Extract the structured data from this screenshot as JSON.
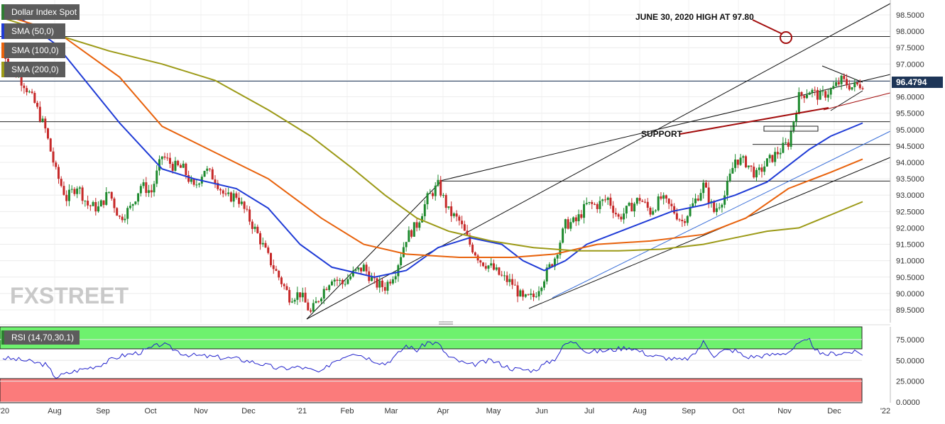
{
  "chart_data": {
    "type": "candlestick",
    "instrument": "Dollar Index Spot",
    "legend": [
      {
        "label": "Dollar Index Spot",
        "color": "#2e7d32"
      },
      {
        "label": "SMA (50,0)",
        "color": "#1f3bd6"
      },
      {
        "label": "SMA (100,0)",
        "color": "#e8620c"
      },
      {
        "label": "SMA (200,0)",
        "color": "#9c9a17"
      }
    ],
    "last_price_label": "96.4794",
    "last_price": 96.4794,
    "y_ticks": [
      "98.5000",
      "98.0000",
      "97.5000",
      "97.0000",
      "96.5000",
      "96.0000",
      "95.5000",
      "95.0000",
      "94.5000",
      "94.0000",
      "93.5000",
      "93.0000",
      "92.5000",
      "92.0000",
      "91.5000",
      "91.0000",
      "90.5000",
      "90.0000",
      "89.5000"
    ],
    "ylim": [
      89.2,
      98.85
    ],
    "x_ticks": [
      "'20",
      "Aug",
      "Sep",
      "Oct",
      "Nov",
      "Dec",
      "'21",
      "Feb",
      "Mar",
      "Apr",
      "May",
      "Jun",
      "Jul",
      "Aug",
      "Sep",
      "Oct",
      "Nov",
      "Dec",
      "'22"
    ],
    "annotations": {
      "high": "JUNE 30, 2020 HIGH AT 97.80",
      "support": "SUPPORT"
    },
    "horizontal_levels": [
      97.84,
      96.48,
      95.24,
      94.55,
      93.43
    ],
    "close_path": [
      [
        0,
        97.4
      ],
      [
        2,
        96.8
      ],
      [
        4,
        96.4
      ],
      [
        6,
        95.8
      ],
      [
        8,
        95.0
      ],
      [
        10,
        93.7
      ],
      [
        12,
        92.9
      ],
      [
        14,
        93.3
      ],
      [
        16,
        92.7
      ],
      [
        18,
        92.6
      ],
      [
        20,
        93.1
      ],
      [
        22,
        92.3
      ],
      [
        24,
        92.6
      ],
      [
        26,
        93.3
      ],
      [
        28,
        93.1
      ],
      [
        30,
        94.2
      ],
      [
        32,
        93.9
      ],
      [
        34,
        93.8
      ],
      [
        36,
        93.2
      ],
      [
        38,
        93.8
      ],
      [
        40,
        93.5
      ],
      [
        42,
        92.9
      ],
      [
        44,
        93.0
      ],
      [
        46,
        92.4
      ],
      [
        48,
        91.8
      ],
      [
        50,
        91.1
      ],
      [
        52,
        90.5
      ],
      [
        54,
        89.9
      ],
      [
        56,
        90.0
      ],
      [
        58,
        89.4
      ],
      [
        60,
        90.0
      ],
      [
        62,
        90.5
      ],
      [
        64,
        90.3
      ],
      [
        66,
        90.6
      ],
      [
        68,
        90.8
      ],
      [
        70,
        90.3
      ],
      [
        72,
        90.2
      ],
      [
        74,
        90.7
      ],
      [
        76,
        91.7
      ],
      [
        78,
        92.1
      ],
      [
        80,
        92.9
      ],
      [
        82,
        93.3
      ],
      [
        84,
        92.5
      ],
      [
        86,
        92.2
      ],
      [
        88,
        91.5
      ],
      [
        90,
        91.0
      ],
      [
        92,
        90.8
      ],
      [
        94,
        90.5
      ],
      [
        96,
        90.3
      ],
      [
        98,
        89.8
      ],
      [
        100,
        89.9
      ],
      [
        102,
        90.5
      ],
      [
        104,
        91.1
      ],
      [
        106,
        92.1
      ],
      [
        108,
        92.2
      ],
      [
        110,
        92.7
      ],
      [
        112,
        92.7
      ],
      [
        114,
        92.9
      ],
      [
        116,
        92.3
      ],
      [
        118,
        92.6
      ],
      [
        120,
        92.9
      ],
      [
        122,
        92.5
      ],
      [
        124,
        92.9
      ],
      [
        126,
        92.6
      ],
      [
        128,
        92.2
      ],
      [
        130,
        92.7
      ],
      [
        132,
        93.3
      ],
      [
        134,
        92.5
      ],
      [
        136,
        93.0
      ],
      [
        138,
        94.1
      ],
      [
        140,
        94.0
      ],
      [
        142,
        93.6
      ],
      [
        144,
        94.0
      ],
      [
        146,
        94.3
      ],
      [
        148,
        94.6
      ],
      [
        150,
        96.0
      ],
      [
        152,
        96.2
      ],
      [
        154,
        96.0
      ],
      [
        156,
        96.2
      ],
      [
        158,
        96.5
      ],
      [
        160,
        96.3
      ],
      [
        162,
        96.4
      ]
    ],
    "series": [
      {
        "name": "SMA (50,0)",
        "color": "#1f3bd6",
        "points": [
          [
            0,
            98.8
          ],
          [
            10,
            97.6
          ],
          [
            22,
            95.2
          ],
          [
            30,
            93.8
          ],
          [
            36,
            93.5
          ],
          [
            44,
            93.2
          ],
          [
            50,
            92.6
          ],
          [
            56,
            91.5
          ],
          [
            62,
            90.8
          ],
          [
            70,
            90.5
          ],
          [
            76,
            90.7
          ],
          [
            82,
            91.4
          ],
          [
            88,
            91.7
          ],
          [
            94,
            91.5
          ],
          [
            98,
            91.0
          ],
          [
            102,
            90.7
          ],
          [
            106,
            91.0
          ],
          [
            110,
            91.5
          ],
          [
            118,
            92.0
          ],
          [
            126,
            92.5
          ],
          [
            132,
            92.7
          ],
          [
            138,
            93.0
          ],
          [
            144,
            93.4
          ],
          [
            148,
            93.9
          ],
          [
            152,
            94.4
          ],
          [
            156,
            94.8
          ],
          [
            162,
            95.2
          ]
        ]
      },
      {
        "name": "SMA (100,0)",
        "color": "#e8620c",
        "points": [
          [
            0,
            98.5
          ],
          [
            10,
            98.0
          ],
          [
            22,
            96.6
          ],
          [
            30,
            95.1
          ],
          [
            40,
            94.3
          ],
          [
            50,
            93.5
          ],
          [
            60,
            92.3
          ],
          [
            68,
            91.5
          ],
          [
            76,
            91.2
          ],
          [
            86,
            91.1
          ],
          [
            96,
            91.1
          ],
          [
            104,
            91.2
          ],
          [
            112,
            91.5
          ],
          [
            122,
            91.6
          ],
          [
            132,
            91.8
          ],
          [
            140,
            92.3
          ],
          [
            148,
            93.2
          ],
          [
            156,
            93.7
          ],
          [
            162,
            94.1
          ]
        ]
      },
      {
        "name": "SMA (200,0)",
        "color": "#9c9a17",
        "points": [
          [
            0,
            98.4
          ],
          [
            10,
            97.9
          ],
          [
            20,
            97.4
          ],
          [
            30,
            97.0
          ],
          [
            40,
            96.5
          ],
          [
            50,
            95.6
          ],
          [
            58,
            94.8
          ],
          [
            66,
            93.8
          ],
          [
            72,
            93.0
          ],
          [
            78,
            92.3
          ],
          [
            84,
            91.9
          ],
          [
            92,
            91.6
          ],
          [
            100,
            91.4
          ],
          [
            108,
            91.3
          ],
          [
            116,
            91.3
          ],
          [
            124,
            91.35
          ],
          [
            132,
            91.5
          ],
          [
            138,
            91.7
          ],
          [
            144,
            91.9
          ],
          [
            150,
            92.0
          ],
          [
            156,
            92.4
          ],
          [
            162,
            92.8
          ]
        ]
      }
    ],
    "rsi": {
      "label": "RSI (14,70,30,1)",
      "overbought": 70,
      "oversold": 30,
      "ticks": [
        "75.0000",
        "50.0000",
        "25.0000",
        "0.0000"
      ],
      "ylim": [
        0,
        86
      ],
      "values": [
        [
          0,
          53
        ],
        [
          4,
          50
        ],
        [
          8,
          45
        ],
        [
          10,
          30
        ],
        [
          14,
          38
        ],
        [
          18,
          44
        ],
        [
          22,
          55
        ],
        [
          26,
          60
        ],
        [
          30,
          70
        ],
        [
          34,
          58
        ],
        [
          36,
          56
        ],
        [
          40,
          54
        ],
        [
          44,
          52
        ],
        [
          48,
          47
        ],
        [
          52,
          40
        ],
        [
          56,
          42
        ],
        [
          60,
          35
        ],
        [
          62,
          48
        ],
        [
          66,
          60
        ],
        [
          70,
          50
        ],
        [
          72,
          46
        ],
        [
          74,
          55
        ],
        [
          76,
          68
        ],
        [
          78,
          62
        ],
        [
          80,
          72
        ],
        [
          82,
          70
        ],
        [
          84,
          54
        ],
        [
          88,
          44
        ],
        [
          92,
          50
        ],
        [
          96,
          40
        ],
        [
          100,
          38
        ],
        [
          104,
          52
        ],
        [
          106,
          70
        ],
        [
          108,
          73
        ],
        [
          110,
          60
        ],
        [
          114,
          62
        ],
        [
          118,
          66
        ],
        [
          122,
          56
        ],
        [
          124,
          54
        ],
        [
          128,
          50
        ],
        [
          130,
          55
        ],
        [
          132,
          72
        ],
        [
          134,
          56
        ],
        [
          136,
          62
        ],
        [
          138,
          62
        ],
        [
          140,
          54
        ],
        [
          144,
          56
        ],
        [
          148,
          60
        ],
        [
          150,
          70
        ],
        [
          152,
          74
        ],
        [
          154,
          56
        ],
        [
          156,
          58
        ],
        [
          160,
          60
        ],
        [
          162,
          58
        ]
      ]
    }
  }
}
